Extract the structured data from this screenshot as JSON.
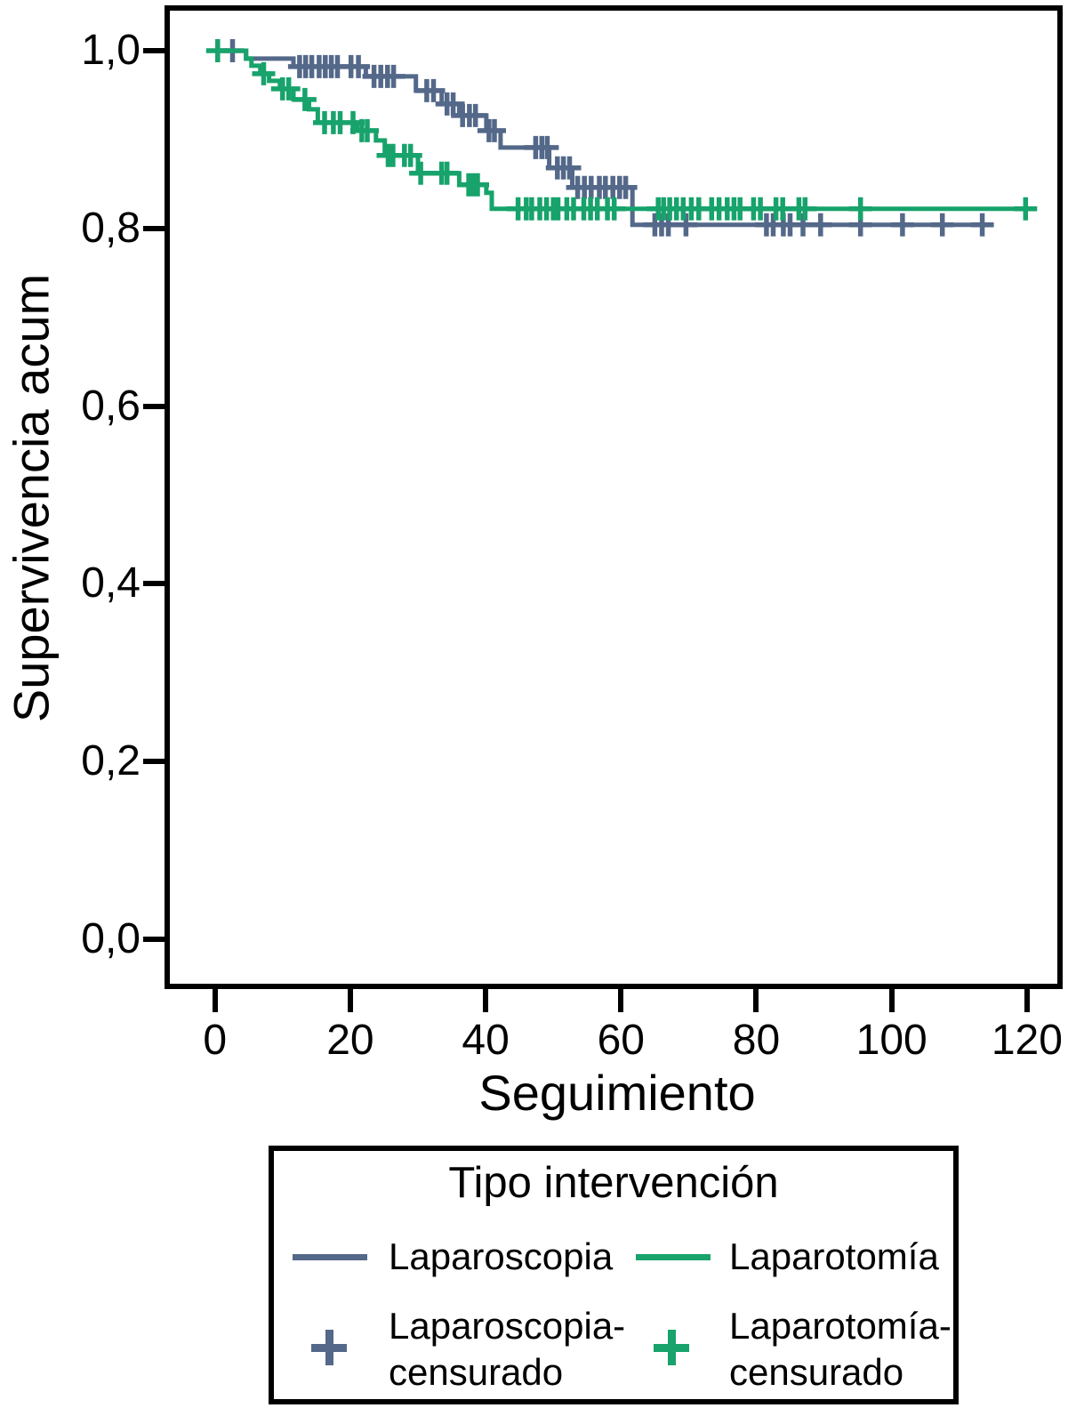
{
  "figure": {
    "y_axis_title": "Supervivencia acum",
    "x_axis_title": "Seguimiento"
  },
  "chart_data": {
    "type": "line",
    "subtype": "kaplan_meier_step",
    "title": "",
    "xlabel": "Seguimiento",
    "ylabel": "Supervivencia acum",
    "legend_position": "bottom",
    "grid": false,
    "x_range": [
      -6.8,
      125.8
    ],
    "y_range": [
      -0.056,
      1.049
    ],
    "x_ticks": [
      {
        "value": 0,
        "label": "0"
      },
      {
        "value": 20,
        "label": "20"
      },
      {
        "value": 40,
        "label": "40"
      },
      {
        "value": 60,
        "label": "60"
      },
      {
        "value": 80,
        "label": "80"
      },
      {
        "value": 100,
        "label": "100"
      },
      {
        "value": 120,
        "label": "120"
      }
    ],
    "y_ticks": [
      {
        "value": 1.0,
        "label": "1,0"
      },
      {
        "value": 0.8,
        "label": "0,8"
      },
      {
        "value": 0.6,
        "label": "0,6"
      },
      {
        "value": 0.4,
        "label": "0,4"
      },
      {
        "value": 0.2,
        "label": "0,2"
      },
      {
        "value": 0.0,
        "label": "0,0"
      }
    ],
    "series": [
      {
        "id": "laparoscopia",
        "name": "Laparoscopia",
        "color": "#546889",
        "steps": [
          [
            0,
            1.0
          ],
          [
            4.6,
            0.991
          ],
          [
            11.6,
            0.982
          ],
          [
            22.3,
            0.971
          ],
          [
            29.7,
            0.955
          ],
          [
            33.5,
            0.94
          ],
          [
            36.1,
            0.927
          ],
          [
            40.1,
            0.91
          ],
          [
            42.2,
            0.891
          ],
          [
            49.4,
            0.868
          ],
          [
            52.8,
            0.846
          ],
          [
            61.7,
            0.804
          ]
        ],
        "end_t": 114.5,
        "censors": [
          [
            2.6,
            1.0
          ],
          [
            12.5,
            0.982
          ],
          [
            13.4,
            0.982
          ],
          [
            14.3,
            0.982
          ],
          [
            15.4,
            0.982
          ],
          [
            16.3,
            0.982
          ],
          [
            17.2,
            0.982
          ],
          [
            18.1,
            0.982
          ],
          [
            20.1,
            0.982
          ],
          [
            21.2,
            0.982
          ],
          [
            23.5,
            0.971
          ],
          [
            24.5,
            0.971
          ],
          [
            25.5,
            0.971
          ],
          [
            26.4,
            0.971
          ],
          [
            31.3,
            0.955
          ],
          [
            32.3,
            0.955
          ],
          [
            34.3,
            0.94
          ],
          [
            35.2,
            0.94
          ],
          [
            36.6,
            0.927
          ],
          [
            37.6,
            0.927
          ],
          [
            38.5,
            0.927
          ],
          [
            40.5,
            0.91
          ],
          [
            41.3,
            0.91
          ],
          [
            47.4,
            0.891
          ],
          [
            48.3,
            0.891
          ],
          [
            49.1,
            0.891
          ],
          [
            50.6,
            0.868
          ],
          [
            51.5,
            0.868
          ],
          [
            52.4,
            0.868
          ],
          [
            53.6,
            0.846
          ],
          [
            54.6,
            0.846
          ],
          [
            55.6,
            0.846
          ],
          [
            56.8,
            0.846
          ],
          [
            57.7,
            0.846
          ],
          [
            58.8,
            0.846
          ],
          [
            59.8,
            0.846
          ],
          [
            60.7,
            0.846
          ],
          [
            65.0,
            0.804
          ],
          [
            66.0,
            0.804
          ],
          [
            67.0,
            0.804
          ],
          [
            69.6,
            0.804
          ],
          [
            81.5,
            0.804
          ],
          [
            82.5,
            0.804
          ],
          [
            84.0,
            0.804
          ],
          [
            85.0,
            0.804
          ],
          [
            86.9,
            0.804
          ],
          [
            89.5,
            0.804
          ],
          [
            95.4,
            0.804
          ],
          [
            101.6,
            0.804
          ],
          [
            107.5,
            0.804
          ],
          [
            113.4,
            0.804
          ]
        ]
      },
      {
        "id": "laparotomia",
        "name": "Laparotomía",
        "color": "#17a36b",
        "steps": [
          [
            0,
            1.0
          ],
          [
            4.6,
            0.991
          ],
          [
            5.4,
            0.983
          ],
          [
            6.7,
            0.974
          ],
          [
            8.0,
            0.966
          ],
          [
            9.6,
            0.957
          ],
          [
            11.6,
            0.945
          ],
          [
            13.9,
            0.934
          ],
          [
            15.2,
            0.919
          ],
          [
            21.0,
            0.91
          ],
          [
            23.8,
            0.899
          ],
          [
            25.1,
            0.882
          ],
          [
            30.0,
            0.862
          ],
          [
            36.1,
            0.849
          ],
          [
            40.1,
            0.84
          ],
          [
            40.9,
            0.822
          ]
        ],
        "end_t": 120,
        "censors": [
          [
            0.4,
            1.0
          ],
          [
            7.2,
            0.974
          ],
          [
            10.0,
            0.957
          ],
          [
            10.9,
            0.957
          ],
          [
            13.3,
            0.945
          ],
          [
            16.2,
            0.919
          ],
          [
            17.5,
            0.919
          ],
          [
            18.5,
            0.919
          ],
          [
            20.4,
            0.919
          ],
          [
            21.7,
            0.91
          ],
          [
            22.5,
            0.91
          ],
          [
            25.6,
            0.882
          ],
          [
            26.3,
            0.882
          ],
          [
            28.0,
            0.882
          ],
          [
            28.9,
            0.882
          ],
          [
            30.4,
            0.862
          ],
          [
            33.5,
            0.862
          ],
          [
            34.3,
            0.862
          ],
          [
            37.5,
            0.849
          ],
          [
            38.1,
            0.849
          ],
          [
            38.8,
            0.849
          ],
          [
            44.8,
            0.822
          ],
          [
            46.0,
            0.822
          ],
          [
            46.8,
            0.822
          ],
          [
            48.0,
            0.822
          ],
          [
            49.0,
            0.822
          ],
          [
            50.0,
            0.822
          ],
          [
            50.7,
            0.822
          ],
          [
            52.0,
            0.822
          ],
          [
            53.0,
            0.822
          ],
          [
            54.5,
            0.822
          ],
          [
            55.5,
            0.822
          ],
          [
            56.5,
            0.822
          ],
          [
            58.0,
            0.822
          ],
          [
            59.0,
            0.822
          ],
          [
            65.5,
            0.822
          ],
          [
            66.3,
            0.822
          ],
          [
            67.2,
            0.822
          ],
          [
            68.2,
            0.822
          ],
          [
            69.2,
            0.822
          ],
          [
            70.4,
            0.822
          ],
          [
            71.5,
            0.822
          ],
          [
            73.4,
            0.822
          ],
          [
            74.5,
            0.822
          ],
          [
            75.7,
            0.822
          ],
          [
            76.7,
            0.822
          ],
          [
            77.6,
            0.822
          ],
          [
            79.6,
            0.822
          ],
          [
            80.6,
            0.822
          ],
          [
            82.9,
            0.822
          ],
          [
            83.9,
            0.822
          ],
          [
            86.3,
            0.822
          ],
          [
            87.2,
            0.822
          ],
          [
            95.4,
            0.822
          ],
          [
            119.8,
            0.822
          ]
        ]
      }
    ]
  },
  "legend": {
    "title": "Tipo intervención",
    "items": [
      {
        "label": "Laparoscopia",
        "marker": "line",
        "color": "#546889"
      },
      {
        "label": "Laparotomía",
        "marker": "line",
        "color": "#17a36b"
      },
      {
        "label": "Laparoscopia-censurado",
        "label_line1": "Laparoscopia-",
        "label_line2": "censurado",
        "marker": "plus",
        "color": "#546889"
      },
      {
        "label": "Laparotomía-censurado",
        "label_line1": "Laparotomía-",
        "label_line2": "censurado",
        "marker": "plus",
        "color": "#17a36b"
      }
    ]
  }
}
